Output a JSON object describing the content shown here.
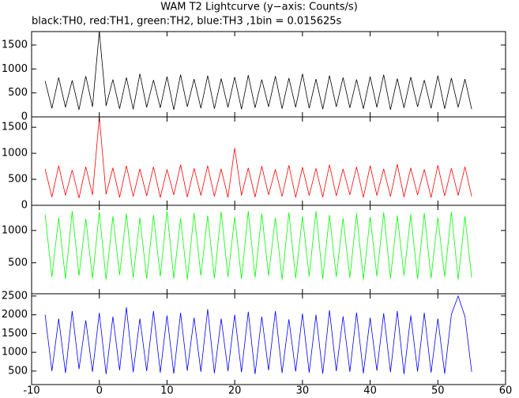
{
  "chart_data": {
    "type": "line",
    "title": "WAM T2 Lightcurve (y−axis: Counts/s)",
    "subtitle": "black:TH0, red:TH1, green:TH2, blue:TH3 ,1bin = 0.015625s",
    "x": [
      -8,
      -7,
      -6,
      -5,
      -4,
      -3,
      -2,
      -1,
      0,
      1,
      2,
      3,
      4,
      5,
      6,
      7,
      8,
      9,
      10,
      11,
      12,
      13,
      14,
      15,
      16,
      17,
      18,
      19,
      20,
      21,
      22,
      23,
      24,
      25,
      26,
      27,
      28,
      29,
      30,
      31,
      32,
      33,
      34,
      35,
      36,
      37,
      38,
      39,
      40,
      41,
      42,
      43,
      44,
      45,
      46,
      47,
      48,
      49,
      50,
      51,
      52,
      53,
      54,
      55
    ],
    "xlim": [
      -10,
      60
    ],
    "xticks": [
      -10,
      0,
      10,
      20,
      30,
      40,
      50,
      60
    ],
    "series": [
      {
        "color": "#000000",
        "ylim": [
          0,
          1780
        ],
        "yticks": [
          0,
          500,
          1000,
          1500
        ],
        "values": [
          750,
          180,
          820,
          200,
          760,
          150,
          850,
          210,
          1780,
          230,
          780,
          170,
          820,
          160,
          900,
          200,
          770,
          190,
          840,
          150,
          880,
          210,
          790,
          180,
          860,
          170,
          800,
          200,
          830,
          160,
          870,
          190,
          780,
          210,
          850,
          170,
          810,
          200,
          900,
          180,
          790,
          160,
          860,
          210,
          820,
          190,
          780,
          170,
          840,
          200,
          880,
          150,
          800,
          190,
          830,
          210,
          770,
          180,
          860,
          170,
          810,
          200,
          790,
          160
        ]
      },
      {
        "color": "#ff0000",
        "ylim": [
          0,
          1700
        ],
        "yticks": [
          0,
          500,
          1000,
          1500
        ],
        "values": [
          700,
          160,
          760,
          190,
          680,
          140,
          740,
          200,
          1700,
          210,
          720,
          150,
          760,
          170,
          700,
          180,
          740,
          150,
          690,
          200,
          780,
          160,
          710,
          190,
          760,
          170,
          700,
          150,
          1100,
          190,
          720,
          160,
          750,
          200,
          690,
          170,
          770,
          150,
          730,
          190,
          710,
          160,
          780,
          180,
          700,
          200,
          740,
          150,
          760,
          190,
          700,
          170,
          790,
          160,
          720,
          200,
          690,
          150,
          770,
          180,
          710,
          190,
          740,
          170
        ]
      },
      {
        "color": "#00ff00",
        "ylim": [
          20,
          1390
        ],
        "yticks": [
          500,
          1000
        ],
        "values": [
          1250,
          280,
          1200,
          250,
          1300,
          300,
          1180,
          260,
          1280,
          240,
          1220,
          310,
          1260,
          270,
          1200,
          250,
          1240,
          290,
          1300,
          260,
          1190,
          240,
          1270,
          300,
          1230,
          260,
          1290,
          280,
          1210,
          250,
          1300,
          270,
          1260,
          300,
          1200,
          240,
          1280,
          260,
          1220,
          290,
          1300,
          250,
          1240,
          280,
          1190,
          270,
          1260,
          240,
          1210,
          290,
          1280,
          260,
          1230,
          300,
          1250,
          250,
          1270,
          260,
          1200,
          280,
          1290,
          240,
          1220,
          270
        ]
      },
      {
        "color": "#0000ff",
        "ylim": [
          140,
          2560
        ],
        "yticks": [
          500,
          1000,
          1500,
          2000,
          2500
        ],
        "values": [
          2000,
          500,
          1900,
          450,
          2100,
          550,
          1850,
          480,
          2050,
          420,
          1950,
          520,
          2200,
          470,
          1900,
          500,
          2100,
          460,
          1980,
          430,
          2050,
          510,
          1920,
          480,
          2150,
          440,
          1900,
          500,
          2000,
          470,
          2080,
          420,
          1950,
          520,
          2100,
          450,
          1880,
          490,
          2030,
          460,
          2000,
          430,
          2120,
          500,
          1960,
          480,
          2060,
          440,
          1920,
          510,
          2040,
          470,
          2100,
          420,
          1980,
          490,
          2050,
          460,
          1900,
          430,
          2010,
          2500,
          1950,
          480
        ]
      }
    ]
  }
}
